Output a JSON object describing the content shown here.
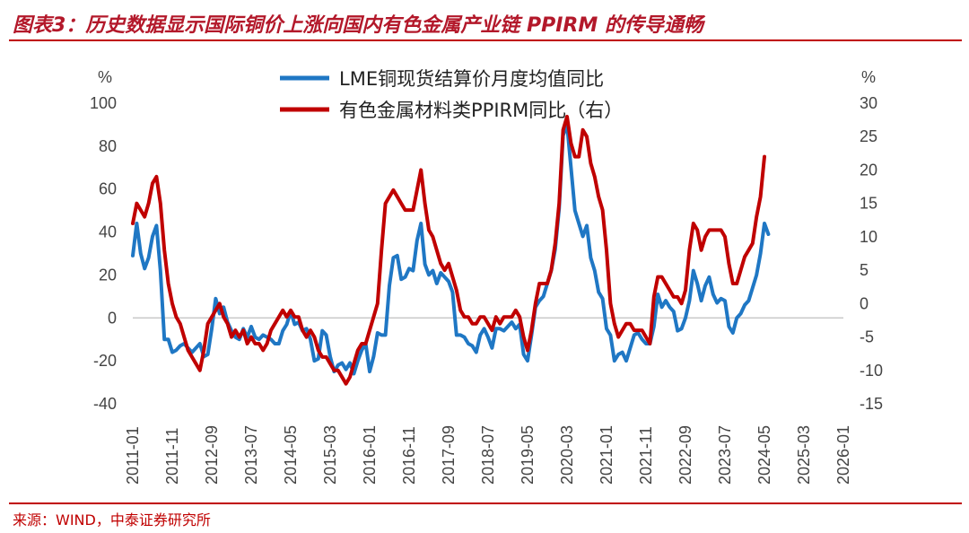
{
  "header": {
    "title": "图表3：历史数据显示国际铜价上涨向国内有色金属产业链 PPIRM 的传导通畅"
  },
  "footer": {
    "source": "来源：WIND，中泰证券研究所"
  },
  "colors": {
    "accent_red": "#c00000",
    "series1": "#1f77c4",
    "series2": "#c00000"
  },
  "chart_data": {
    "type": "line",
    "title": "",
    "left_axis": {
      "unit": "%",
      "ylim": [
        -40,
        100
      ],
      "ticks": [
        100,
        80,
        60,
        40,
        20,
        0,
        -20,
        -40
      ]
    },
    "right_axis": {
      "unit": "%",
      "ylim": [
        -15,
        30
      ],
      "ticks": [
        30,
        25,
        20,
        15,
        10,
        5,
        0,
        -5,
        -10,
        -15
      ]
    },
    "x_tick_labels": [
      "2011-01",
      "2011-11",
      "2012-09",
      "2013-07",
      "2014-05",
      "2015-03",
      "2016-01",
      "2016-11",
      "2017-09",
      "2018-07",
      "2019-05",
      "2020-03",
      "2021-01",
      "2021-11",
      "2022-09",
      "2023-07",
      "2024-05",
      "2025-03",
      "2026-01"
    ],
    "x_start_month": 0,
    "x_end_month": 180,
    "legend_placement": "top-center",
    "series": [
      {
        "name": "LME铜现货结算价月度均值同比",
        "axis": "left",
        "color": "#1f77c4",
        "points": [
          [
            0,
            29
          ],
          [
            1,
            44
          ],
          [
            2,
            30
          ],
          [
            3,
            23
          ],
          [
            4,
            28
          ],
          [
            5,
            38
          ],
          [
            6,
            43
          ],
          [
            7,
            22
          ],
          [
            8,
            -10
          ],
          [
            9,
            -10
          ],
          [
            10,
            -16
          ],
          [
            11,
            -15
          ],
          [
            12,
            -13
          ],
          [
            13,
            -12
          ],
          [
            14,
            -14
          ],
          [
            15,
            -16
          ],
          [
            16,
            -14
          ],
          [
            17,
            -12
          ],
          [
            18,
            -18
          ],
          [
            19,
            -17
          ],
          [
            20,
            -5
          ],
          [
            21,
            9
          ],
          [
            22,
            2
          ],
          [
            23,
            5
          ],
          [
            24,
            -2
          ],
          [
            25,
            -6
          ],
          [
            26,
            -9
          ],
          [
            27,
            -10
          ],
          [
            28,
            -5
          ],
          [
            29,
            -9
          ],
          [
            30,
            -4
          ],
          [
            31,
            -9
          ],
          [
            32,
            -10
          ],
          [
            33,
            -8
          ],
          [
            34,
            -9
          ],
          [
            35,
            -10
          ],
          [
            36,
            -12
          ],
          [
            37,
            -12
          ],
          [
            38,
            -6
          ],
          [
            39,
            -3
          ],
          [
            40,
            3
          ],
          [
            41,
            -3
          ],
          [
            42,
            -2
          ],
          [
            43,
            -6
          ],
          [
            44,
            -5
          ],
          [
            45,
            -10
          ],
          [
            46,
            -20
          ],
          [
            47,
            -19
          ],
          [
            48,
            -6
          ],
          [
            49,
            -8
          ],
          [
            50,
            -18
          ],
          [
            51,
            -25
          ],
          [
            52,
            -22
          ],
          [
            53,
            -21
          ],
          [
            54,
            -24
          ],
          [
            55,
            -21
          ],
          [
            56,
            -26
          ],
          [
            57,
            -20
          ],
          [
            58,
            -15
          ],
          [
            59,
            -12
          ],
          [
            60,
            -25
          ],
          [
            61,
            -18
          ],
          [
            62,
            -7
          ],
          [
            63,
            -8
          ],
          [
            64,
            -8
          ],
          [
            65,
            15
          ],
          [
            66,
            28
          ],
          [
            67,
            29
          ],
          [
            68,
            18
          ],
          [
            69,
            19
          ],
          [
            70,
            23
          ],
          [
            71,
            22
          ],
          [
            72,
            36
          ],
          [
            73,
            44
          ],
          [
            74,
            25
          ],
          [
            75,
            20
          ],
          [
            76,
            22
          ],
          [
            77,
            16
          ],
          [
            78,
            21
          ],
          [
            79,
            19
          ],
          [
            80,
            17
          ],
          [
            81,
            12
          ],
          [
            82,
            -8
          ],
          [
            83,
            -8
          ],
          [
            84,
            -9
          ],
          [
            85,
            -12
          ],
          [
            86,
            -13
          ],
          [
            87,
            -16
          ],
          [
            88,
            -8
          ],
          [
            89,
            -5
          ],
          [
            90,
            -9
          ],
          [
            91,
            -14
          ],
          [
            92,
            -5
          ],
          [
            93,
            -5
          ],
          [
            94,
            -6
          ],
          [
            95,
            -4
          ],
          [
            96,
            -2
          ],
          [
            97,
            -5
          ],
          [
            98,
            -3
          ],
          [
            99,
            -17
          ],
          [
            100,
            -20
          ],
          [
            101,
            -8
          ],
          [
            102,
            5
          ],
          [
            103,
            8
          ],
          [
            104,
            10
          ],
          [
            105,
            16
          ],
          [
            106,
            22
          ],
          [
            107,
            32
          ],
          [
            108,
            51
          ],
          [
            109,
            85
          ],
          [
            110,
            90
          ],
          [
            111,
            70
          ],
          [
            112,
            50
          ],
          [
            113,
            44
          ],
          [
            114,
            38
          ],
          [
            115,
            43
          ],
          [
            116,
            28
          ],
          [
            117,
            22
          ],
          [
            118,
            12
          ],
          [
            119,
            9
          ],
          [
            120,
            -5
          ],
          [
            121,
            -8
          ],
          [
            122,
            -20
          ],
          [
            123,
            -17
          ],
          [
            124,
            -16
          ],
          [
            125,
            -20
          ],
          [
            126,
            -14
          ],
          [
            127,
            -8
          ],
          [
            128,
            -7
          ],
          [
            129,
            -10
          ],
          [
            130,
            -12
          ],
          [
            131,
            -12
          ],
          [
            132,
            -4
          ],
          [
            133,
            11
          ],
          [
            134,
            5
          ],
          [
            135,
            8
          ],
          [
            136,
            5
          ],
          [
            137,
            3
          ],
          [
            138,
            -6
          ],
          [
            139,
            -5
          ],
          [
            140,
            0
          ],
          [
            141,
            8
          ],
          [
            142,
            22
          ],
          [
            143,
            16
          ],
          [
            144,
            8
          ],
          [
            145,
            15
          ],
          [
            146,
            19
          ],
          [
            147,
            11
          ],
          [
            148,
            7
          ],
          [
            149,
            9
          ],
          [
            150,
            8
          ],
          [
            151,
            -4
          ],
          [
            152,
            -7
          ],
          [
            153,
            0
          ],
          [
            154,
            2
          ],
          [
            155,
            6
          ],
          [
            156,
            8
          ],
          [
            157,
            14
          ],
          [
            158,
            20
          ],
          [
            159,
            30
          ],
          [
            160,
            44
          ],
          [
            161,
            39
          ]
        ]
      },
      {
        "name": "有色金属材料类PPIRM同比（右）",
        "axis": "right",
        "color": "#c00000",
        "points": [
          [
            0,
            12
          ],
          [
            1,
            15
          ],
          [
            2,
            14
          ],
          [
            3,
            13
          ],
          [
            4,
            15
          ],
          [
            5,
            18
          ],
          [
            6,
            19
          ],
          [
            7,
            15
          ],
          [
            8,
            8
          ],
          [
            9,
            3
          ],
          [
            10,
            0
          ],
          [
            11,
            -2
          ],
          [
            12,
            -3
          ],
          [
            13,
            -5
          ],
          [
            14,
            -7
          ],
          [
            15,
            -8
          ],
          [
            16,
            -9
          ],
          [
            17,
            -10
          ],
          [
            18,
            -7
          ],
          [
            19,
            -3
          ],
          [
            20,
            -2
          ],
          [
            21,
            -1
          ],
          [
            22,
            0
          ],
          [
            23,
            -2
          ],
          [
            24,
            -3
          ],
          [
            25,
            -5
          ],
          [
            26,
            -4
          ],
          [
            27,
            -5
          ],
          [
            28,
            -4
          ],
          [
            29,
            -6
          ],
          [
            30,
            -5
          ],
          [
            31,
            -6
          ],
          [
            32,
            -6
          ],
          [
            33,
            -7
          ],
          [
            34,
            -6
          ],
          [
            35,
            -4
          ],
          [
            36,
            -3
          ],
          [
            37,
            -2
          ],
          [
            38,
            -1
          ],
          [
            39,
            -2
          ],
          [
            40,
            -1
          ],
          [
            41,
            -2
          ],
          [
            42,
            -2
          ],
          [
            43,
            -4
          ],
          [
            44,
            -5
          ],
          [
            45,
            -4
          ],
          [
            46,
            -5
          ],
          [
            47,
            -7
          ],
          [
            48,
            -8
          ],
          [
            49,
            -8
          ],
          [
            50,
            -9
          ],
          [
            51,
            -10
          ],
          [
            52,
            -10
          ],
          [
            53,
            -11
          ],
          [
            54,
            -12
          ],
          [
            55,
            -11
          ],
          [
            56,
            -9
          ],
          [
            57,
            -7
          ],
          [
            58,
            -6
          ],
          [
            59,
            -6
          ],
          [
            60,
            -4
          ],
          [
            61,
            -2
          ],
          [
            62,
            0
          ],
          [
            63,
            8
          ],
          [
            64,
            15
          ],
          [
            65,
            16
          ],
          [
            66,
            17
          ],
          [
            67,
            16
          ],
          [
            68,
            15
          ],
          [
            69,
            14
          ],
          [
            70,
            14
          ],
          [
            71,
            14
          ],
          [
            72,
            17
          ],
          [
            73,
            20
          ],
          [
            74,
            15
          ],
          [
            75,
            11
          ],
          [
            76,
            10
          ],
          [
            77,
            8
          ],
          [
            78,
            6
          ],
          [
            79,
            5
          ],
          [
            80,
            6
          ],
          [
            81,
            4
          ],
          [
            82,
            2
          ],
          [
            83,
            -1
          ],
          [
            84,
            -2
          ],
          [
            85,
            -2
          ],
          [
            86,
            -3
          ],
          [
            87,
            -3
          ],
          [
            88,
            -2
          ],
          [
            89,
            -2
          ],
          [
            90,
            -3
          ],
          [
            91,
            -4
          ],
          [
            92,
            -2
          ],
          [
            93,
            -3
          ],
          [
            94,
            -2
          ],
          [
            95,
            -2
          ],
          [
            96,
            -2
          ],
          [
            97,
            -1
          ],
          [
            98,
            -2
          ],
          [
            99,
            -5
          ],
          [
            100,
            -7
          ],
          [
            101,
            -4
          ],
          [
            102,
            0
          ],
          [
            103,
            3
          ],
          [
            104,
            3
          ],
          [
            105,
            3
          ],
          [
            106,
            5
          ],
          [
            107,
            9
          ],
          [
            108,
            15
          ],
          [
            109,
            26
          ],
          [
            110,
            28
          ],
          [
            111,
            24
          ],
          [
            112,
            22
          ],
          [
            113,
            22
          ],
          [
            114,
            26
          ],
          [
            115,
            25
          ],
          [
            116,
            21
          ],
          [
            117,
            19
          ],
          [
            118,
            16
          ],
          [
            119,
            14
          ],
          [
            120,
            8
          ],
          [
            121,
            0
          ],
          [
            122,
            -3
          ],
          [
            123,
            -5
          ],
          [
            124,
            -4
          ],
          [
            125,
            -3
          ],
          [
            126,
            -3
          ],
          [
            127,
            -4
          ],
          [
            128,
            -4
          ],
          [
            129,
            -4
          ],
          [
            130,
            -5
          ],
          [
            131,
            -6
          ],
          [
            132,
            1
          ],
          [
            133,
            4
          ],
          [
            134,
            4
          ],
          [
            135,
            3
          ],
          [
            136,
            2
          ],
          [
            137,
            1
          ],
          [
            138,
            1
          ],
          [
            139,
            0
          ],
          [
            140,
            2
          ],
          [
            141,
            8
          ],
          [
            142,
            12
          ],
          [
            143,
            11
          ],
          [
            144,
            8
          ],
          [
            145,
            10
          ],
          [
            146,
            11
          ],
          [
            147,
            11
          ],
          [
            148,
            11
          ],
          [
            149,
            11
          ],
          [
            150,
            10
          ],
          [
            151,
            6
          ],
          [
            152,
            3
          ],
          [
            153,
            3
          ],
          [
            154,
            5
          ],
          [
            155,
            7
          ],
          [
            156,
            8
          ],
          [
            157,
            9
          ],
          [
            158,
            13
          ],
          [
            159,
            16
          ],
          [
            160,
            22
          ]
        ]
      }
    ]
  }
}
